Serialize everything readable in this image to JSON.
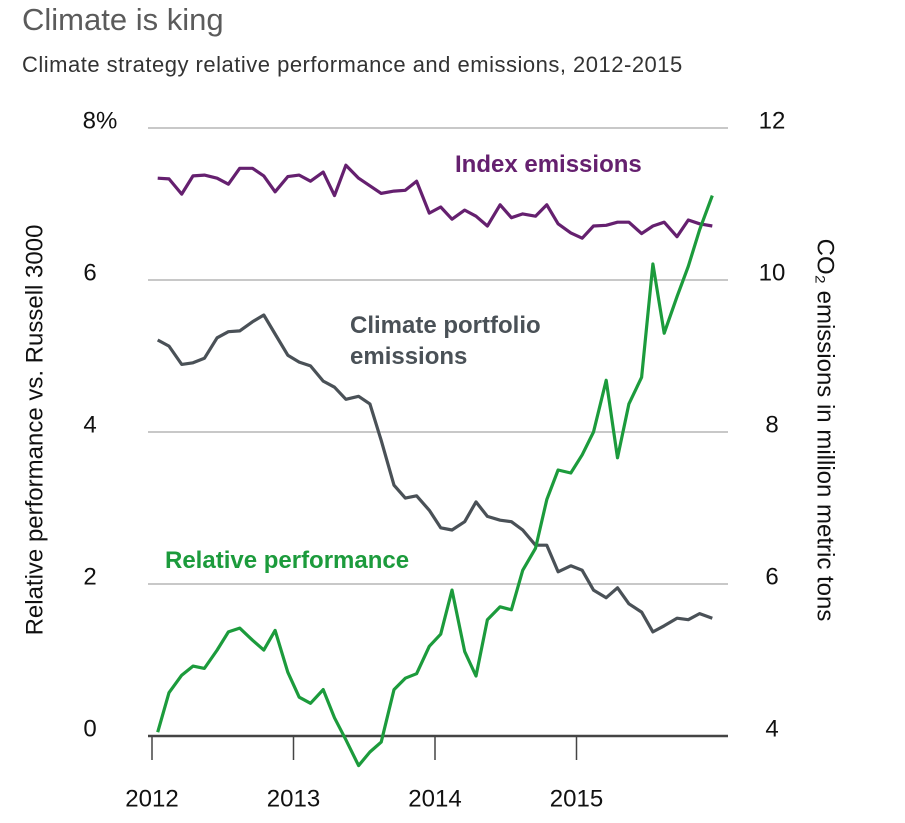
{
  "chart_data": {
    "type": "line",
    "title": "Climate is king",
    "subtitle": "Climate strategy relative performance and emissions, 2012-2015",
    "ylabel": "Relative performance vs. Russell 3000",
    "y2label": "CO₂ emissions in million metric tons",
    "x": [
      2012.04,
      2012.12,
      2012.21,
      2012.29,
      2012.37,
      2012.46,
      2012.54,
      2012.62,
      2012.71,
      2012.79,
      2012.87,
      2012.96,
      2013.04,
      2013.12,
      2013.21,
      2013.29,
      2013.37,
      2013.46,
      2013.54,
      2013.62,
      2013.71,
      2013.79,
      2013.87,
      2013.96,
      2014.04,
      2014.12,
      2014.21,
      2014.29,
      2014.37,
      2014.46,
      2014.54,
      2014.62,
      2014.71,
      2014.79,
      2014.87,
      2014.96,
      2015.04,
      2015.12,
      2015.21,
      2015.29,
      2015.37,
      2015.46,
      2015.54,
      2015.62,
      2015.71,
      2015.79,
      2015.87,
      2015.96
    ],
    "xlim": [
      2012,
      2016
    ],
    "xticks": [
      2012,
      2013,
      2014,
      2015
    ],
    "ylim": [
      0,
      8
    ],
    "yticks": [
      0,
      2,
      4,
      6,
      {
        "value": 8,
        "label": "8%"
      }
    ],
    "y2lim": [
      4,
      12
    ],
    "y2ticks": [
      4,
      6,
      8,
      10,
      12
    ],
    "grid": true,
    "series": [
      {
        "name": "Index emissions",
        "color": "#65206f",
        "axis": "y2",
        "values": [
          11.34,
          11.33,
          11.13,
          11.37,
          11.38,
          11.34,
          11.26,
          11.47,
          11.47,
          11.37,
          11.16,
          11.36,
          11.38,
          11.3,
          11.42,
          11.11,
          11.51,
          11.34,
          11.24,
          11.14,
          11.17,
          11.18,
          11.3,
          10.88,
          10.96,
          10.8,
          10.92,
          10.84,
          10.71,
          10.99,
          10.82,
          10.87,
          10.84,
          10.99,
          10.74,
          10.62,
          10.55,
          10.71,
          10.72,
          10.76,
          10.76,
          10.61,
          10.71,
          10.76,
          10.57,
          10.79,
          10.74,
          10.71
        ]
      },
      {
        "name": "Climate portfolio emissions",
        "color": "#4a5157",
        "axis": "y2",
        "values": [
          9.21,
          9.13,
          8.89,
          8.91,
          8.97,
          9.24,
          9.32,
          9.33,
          9.45,
          9.54,
          9.29,
          9.01,
          8.92,
          8.87,
          8.67,
          8.59,
          8.43,
          8.47,
          8.37,
          7.89,
          7.3,
          7.13,
          7.16,
          6.97,
          6.74,
          6.71,
          6.82,
          7.08,
          6.89,
          6.84,
          6.82,
          6.71,
          6.51,
          6.51,
          6.16,
          6.24,
          6.18,
          5.92,
          5.82,
          5.95,
          5.74,
          5.63,
          5.37,
          5.45,
          5.55,
          5.53,
          5.61,
          5.55
        ]
      },
      {
        "name": "Relative performance",
        "color": "#1c9b3c",
        "axis": "y",
        "values": [
          0.05,
          0.57,
          0.8,
          0.92,
          0.89,
          1.13,
          1.37,
          1.42,
          1.26,
          1.13,
          1.39,
          0.84,
          0.51,
          0.43,
          0.61,
          0.24,
          -0.05,
          -0.39,
          -0.21,
          -0.08,
          0.61,
          0.76,
          0.82,
          1.18,
          1.34,
          1.92,
          1.11,
          0.79,
          1.53,
          1.7,
          1.66,
          2.18,
          2.47,
          3.11,
          3.5,
          3.46,
          3.7,
          4.0,
          4.68,
          3.66,
          4.37,
          4.72,
          6.21,
          5.3,
          5.78,
          6.18,
          6.66,
          7.11
        ]
      }
    ]
  }
}
